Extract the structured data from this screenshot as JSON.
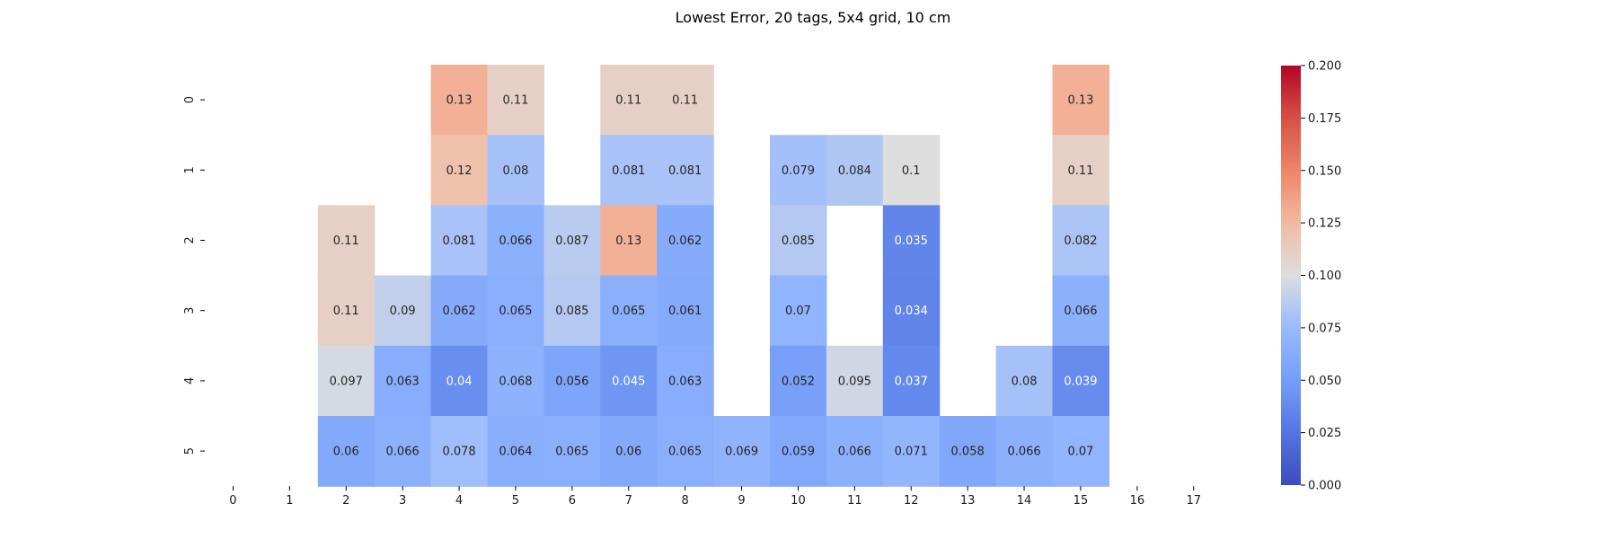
{
  "chart_data": {
    "type": "heatmap",
    "title": "Lowest Error, 20 tags, 5x4 grid, 10 cm",
    "x_categories": [
      "0",
      "1",
      "2",
      "3",
      "4",
      "5",
      "6",
      "7",
      "8",
      "9",
      "10",
      "11",
      "12",
      "13",
      "14",
      "15",
      "16",
      "17"
    ],
    "y_categories": [
      "0",
      "1",
      "2",
      "3",
      "4",
      "5"
    ],
    "values": [
      [
        null,
        null,
        null,
        null,
        0.13,
        0.11,
        null,
        0.11,
        0.11,
        null,
        null,
        null,
        null,
        null,
        null,
        0.13,
        null,
        null
      ],
      [
        null,
        null,
        null,
        null,
        0.12,
        0.08,
        null,
        0.081,
        0.081,
        null,
        0.079,
        0.084,
        0.1,
        null,
        null,
        0.11,
        null,
        null
      ],
      [
        null,
        null,
        0.11,
        null,
        0.081,
        0.066,
        0.087,
        0.13,
        0.062,
        null,
        0.085,
        null,
        0.035,
        null,
        null,
        0.082,
        null,
        null
      ],
      [
        null,
        null,
        0.11,
        0.09,
        0.062,
        0.065,
        0.085,
        0.065,
        0.061,
        null,
        0.07,
        null,
        0.034,
        null,
        null,
        0.066,
        null,
        null
      ],
      [
        null,
        null,
        0.097,
        0.063,
        0.04,
        0.068,
        0.056,
        0.045,
        0.063,
        null,
        0.052,
        0.095,
        0.037,
        null,
        0.08,
        0.039,
        null,
        null
      ],
      [
        null,
        null,
        0.06,
        0.066,
        0.078,
        0.064,
        0.065,
        0.06,
        0.065,
        0.069,
        0.059,
        0.066,
        0.071,
        0.058,
        0.066,
        0.07,
        null,
        null
      ]
    ],
    "colormap": "coolwarm",
    "vmin": 0.0,
    "vmax": 0.2,
    "colorbar_ticks": [
      "0.000",
      "0.025",
      "0.050",
      "0.075",
      "0.100",
      "0.125",
      "0.150",
      "0.175",
      "0.200"
    ],
    "annotated": true,
    "grid": false,
    "colorbar_placement": "right"
  }
}
